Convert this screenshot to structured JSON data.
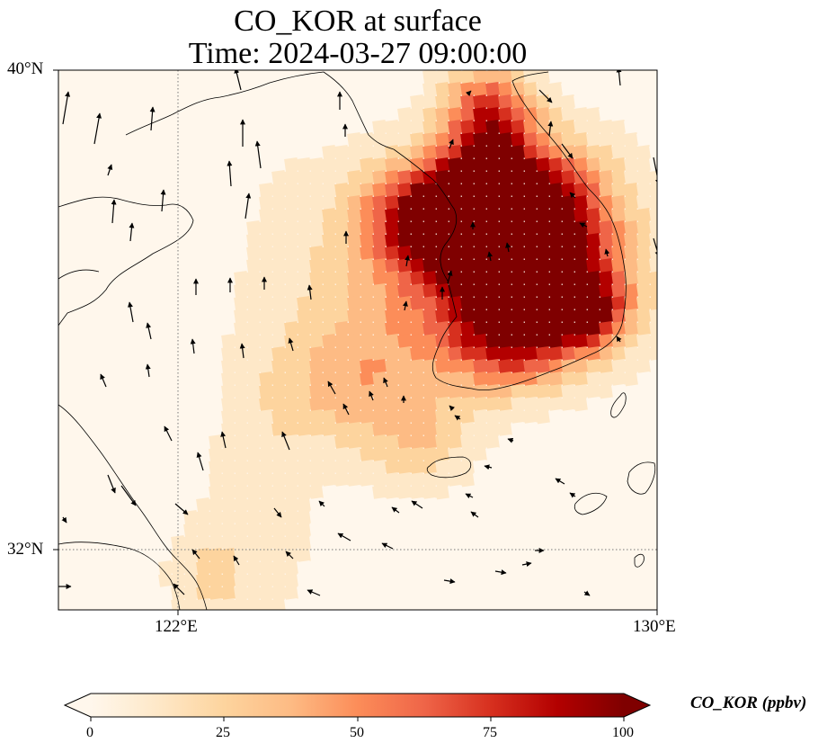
{
  "figure": {
    "title_line1": "CO_KOR at surface",
    "title_line2": "Time: 2024-03-27 09:00:00"
  },
  "map": {
    "lon_range": [
      120,
      130
    ],
    "lat_range": [
      31,
      40
    ],
    "lat_ticks": [
      {
        "value": 40,
        "label": "40°N"
      },
      {
        "value": 32,
        "label": "32°N"
      }
    ],
    "lon_ticks": [
      {
        "value": 122,
        "label": "122°E"
      },
      {
        "value": 130,
        "label": "130°E"
      }
    ],
    "gridlines": "dotted",
    "field": "CO concentration (ppbv), high over Korean peninsula (~100+), plume extending southwest over Yellow Sea",
    "vectors": "wind arrows, mostly northward/northwestward over Yellow Sea and Korea"
  },
  "colorbar": {
    "label": "CO_KOR (ppbv)",
    "min": 0,
    "max": 100,
    "ticks": [
      "0",
      "25",
      "50",
      "75",
      "100"
    ],
    "extend": "both",
    "colormap": "OrRd",
    "colors": [
      "#fff7ec",
      "#fee8c8",
      "#fdd49e",
      "#fdbb84",
      "#fc8d59",
      "#ef6548",
      "#d7301f",
      "#b30000",
      "#7f0000"
    ]
  }
}
